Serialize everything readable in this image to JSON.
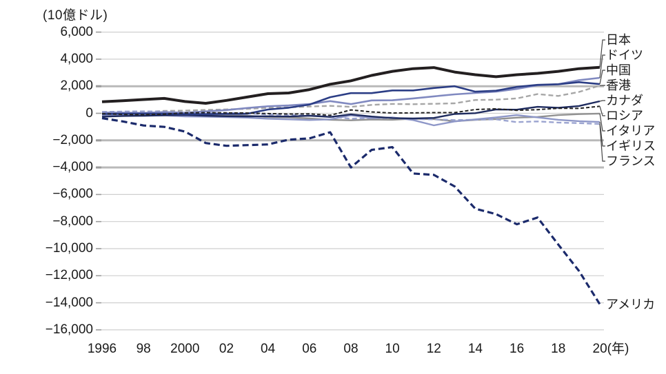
{
  "header": {
    "unit_label": "(10億ドル)"
  },
  "chart_data": {
    "type": "line",
    "title": "",
    "unit_label": "(10億ドル)",
    "xlabel_suffix": "(年)",
    "grid": true,
    "legend_position": "right",
    "ylim": [
      -16000,
      6000
    ],
    "ytick_step": 2000,
    "x_years": [
      1996,
      1997,
      1998,
      1999,
      2000,
      2001,
      2002,
      2003,
      2004,
      2005,
      2006,
      2007,
      2008,
      2009,
      2010,
      2011,
      2012,
      2013,
      2014,
      2015,
      2016,
      2017,
      2018,
      2019,
      2020
    ],
    "xticks": [
      {
        "year": 1996,
        "label": "1996"
      },
      {
        "year": 1998,
        "label": "98"
      },
      {
        "year": 2000,
        "label": "2000"
      },
      {
        "year": 2002,
        "label": "02"
      },
      {
        "year": 2004,
        "label": "04"
      },
      {
        "year": 2006,
        "label": "06"
      },
      {
        "year": 2008,
        "label": "08"
      },
      {
        "year": 2010,
        "label": "10"
      },
      {
        "year": 2012,
        "label": "12"
      },
      {
        "year": 2014,
        "label": "14"
      },
      {
        "year": 2016,
        "label": "16"
      },
      {
        "year": 2018,
        "label": "18"
      },
      {
        "year": 2020,
        "label": "20(年)"
      }
    ],
    "yticks": [
      {
        "value": 6000,
        "label": "6,000"
      },
      {
        "value": 4000,
        "label": "4,000"
      },
      {
        "value": 2000,
        "label": "2,000"
      },
      {
        "value": 0,
        "label": "0"
      },
      {
        "value": -2000,
        "label": "−2,000"
      },
      {
        "value": -4000,
        "label": "−4,000"
      },
      {
        "value": -6000,
        "label": "−6,000"
      },
      {
        "value": -8000,
        "label": "−8,000"
      },
      {
        "value": -10000,
        "label": "−10,000"
      },
      {
        "value": -12000,
        "label": "−12,000"
      },
      {
        "value": -14000,
        "label": "−14,000"
      },
      {
        "value": -16000,
        "label": "−16,000"
      }
    ],
    "grid_emphasis_values": [
      2000,
      -2000,
      -4000
    ],
    "colors": {
      "grid_thin": "#cfcfcf",
      "grid_thick": "#b9b9b9",
      "tick_stub": "#9c9c9c",
      "leader": "#444444",
      "text": "#1a1a1a"
    },
    "series": [
      {
        "key": "japan",
        "label": "日本",
        "color": "#231f20",
        "width": 4,
        "dash": null,
        "values": [
          850,
          930,
          1020,
          1100,
          870,
          740,
          950,
          1200,
          1450,
          1500,
          1750,
          2150,
          2400,
          2800,
          3100,
          3300,
          3380,
          3050,
          2850,
          2700,
          2850,
          2950,
          3100,
          3300,
          3400
        ]
      },
      {
        "key": "germany",
        "label": "ドイツ",
        "color": "#8089c0",
        "width": 2.6,
        "dash": null,
        "values": [
          60,
          50,
          30,
          90,
          40,
          140,
          240,
          390,
          520,
          580,
          680,
          900,
          680,
          950,
          960,
          1100,
          1250,
          1400,
          1500,
          1600,
          1800,
          2070,
          2150,
          2450,
          2620
        ]
      },
      {
        "key": "china",
        "label": "中国",
        "color": "#2b3d85",
        "width": 2.6,
        "dash": null,
        "values": [
          -50,
          -30,
          -20,
          -30,
          -50,
          -60,
          -40,
          -30,
          280,
          410,
          640,
          1190,
          1490,
          1490,
          1690,
          1690,
          1870,
          2000,
          1600,
          1670,
          1950,
          2100,
          2150,
          2300,
          2160
        ]
      },
      {
        "key": "hongkong",
        "label": "香港",
        "color": "#a6a6a6",
        "width": 2.4,
        "dash": "7 4",
        "values": [
          0,
          30,
          100,
          180,
          200,
          250,
          290,
          330,
          400,
          440,
          500,
          550,
          480,
          620,
          690,
          670,
          700,
          740,
          980,
          1010,
          1100,
          1420,
          1280,
          1580,
          2050
        ]
      },
      {
        "key": "canada",
        "label": "カナダ",
        "color": "#1d2a5e",
        "width": 2.4,
        "dash": null,
        "values": [
          -250,
          -200,
          -180,
          -150,
          -120,
          -180,
          -220,
          -230,
          -220,
          -240,
          -180,
          -270,
          -80,
          -240,
          -350,
          -380,
          -340,
          -50,
          10,
          280,
          270,
          480,
          410,
          540,
          890
        ]
      },
      {
        "key": "russia",
        "label": "ロシア",
        "color": "#222222",
        "width": 2,
        "dash": "5 3",
        "values": [
          -30,
          -80,
          -100,
          -60,
          30,
          50,
          30,
          20,
          -20,
          -50,
          -40,
          -150,
          250,
          100,
          20,
          30,
          50,
          50,
          280,
          330,
          220,
          270,
          370,
          360,
          520
        ]
      },
      {
        "key": "italy",
        "label": "イタリア",
        "color": "#919191",
        "width": 2.4,
        "dash": null,
        "values": [
          -90,
          -110,
          -130,
          -100,
          -70,
          -90,
          -130,
          -180,
          -280,
          -300,
          -380,
          -480,
          -520,
          -460,
          -480,
          -400,
          -430,
          -590,
          -490,
          -430,
          -320,
          -270,
          -130,
          -60,
          -20
        ]
      },
      {
        "key": "uk",
        "label": "イギリス",
        "color": "#8e97c8",
        "width": 2.4,
        "dash": null,
        "values": [
          -150,
          -170,
          -190,
          -160,
          -230,
          -250,
          -280,
          -320,
          -400,
          -450,
          -500,
          -450,
          -150,
          -350,
          -300,
          -500,
          -890,
          -600,
          -450,
          -300,
          -130,
          -300,
          -480,
          -580,
          -640
        ]
      },
      {
        "key": "france",
        "label": "フランス",
        "color": "#9ba4d0",
        "width": 2.4,
        "dash": "7 4",
        "values": [
          100,
          130,
          150,
          120,
          50,
          20,
          30,
          0,
          -80,
          -120,
          -160,
          -250,
          -400,
          -350,
          -340,
          -430,
          -450,
          -500,
          -480,
          -450,
          -650,
          -600,
          -680,
          -730,
          -790
        ]
      },
      {
        "key": "usa",
        "label": "アメリカ",
        "color": "#1b2a6b",
        "width": 3.2,
        "dash": "9 5",
        "values": [
          -360,
          -600,
          -900,
          -1000,
          -1350,
          -2200,
          -2400,
          -2350,
          -2300,
          -1950,
          -1850,
          -1400,
          -4000,
          -2700,
          -2500,
          -4450,
          -4550,
          -5400,
          -7050,
          -7450,
          -8200,
          -7700,
          -9700,
          -11650,
          -14100
        ]
      }
    ]
  }
}
